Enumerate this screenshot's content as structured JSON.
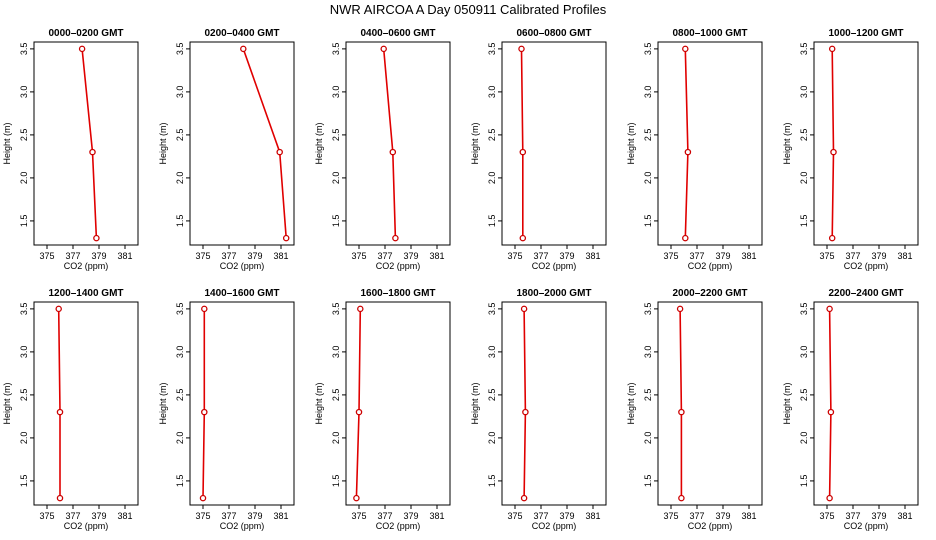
{
  "title": "NWR AIRCOA A  Day 050911  Calibrated Profiles",
  "chart_data": {
    "type": "line",
    "xlabel": "CO2 (ppm)",
    "ylabel": "Height (m)",
    "xlim": [
      374,
      382
    ],
    "ylim": [
      1.22,
      3.58
    ],
    "xticks": [
      375,
      377,
      379,
      381
    ],
    "yticks": [
      1.5,
      2.0,
      2.5,
      3.0,
      3.5
    ],
    "line_color": "#e00000",
    "marker_color": "#cc0000",
    "panels": [
      {
        "title": "0000–0200 GMT",
        "points": [
          {
            "x": 377.7,
            "y": 3.5
          },
          {
            "x": 378.5,
            "y": 2.3
          },
          {
            "x": 378.8,
            "y": 1.3
          }
        ]
      },
      {
        "title": "0200–0400 GMT",
        "points": [
          {
            "x": 378.1,
            "y": 3.5
          },
          {
            "x": 380.9,
            "y": 2.3
          },
          {
            "x": 381.4,
            "y": 1.3
          }
        ]
      },
      {
        "title": "0400–0600 GMT",
        "points": [
          {
            "x": 376.9,
            "y": 3.5
          },
          {
            "x": 377.6,
            "y": 2.3
          },
          {
            "x": 377.8,
            "y": 1.3
          }
        ]
      },
      {
        "title": "0600–0800 GMT",
        "points": [
          {
            "x": 375.5,
            "y": 3.5
          },
          {
            "x": 375.6,
            "y": 2.3
          },
          {
            "x": 375.6,
            "y": 1.3
          }
        ]
      },
      {
        "title": "0800–1000 GMT",
        "points": [
          {
            "x": 376.1,
            "y": 3.5
          },
          {
            "x": 376.3,
            "y": 2.3
          },
          {
            "x": 376.1,
            "y": 1.3
          }
        ]
      },
      {
        "title": "1000–1200 GMT",
        "points": [
          {
            "x": 375.4,
            "y": 3.5
          },
          {
            "x": 375.5,
            "y": 2.3
          },
          {
            "x": 375.4,
            "y": 1.3
          }
        ]
      },
      {
        "title": "1200–1400 GMT",
        "points": [
          {
            "x": 375.9,
            "y": 3.5
          },
          {
            "x": 376.0,
            "y": 2.3
          },
          {
            "x": 376.0,
            "y": 1.3
          }
        ]
      },
      {
        "title": "1400–1600 GMT",
        "points": [
          {
            "x": 375.1,
            "y": 3.5
          },
          {
            "x": 375.1,
            "y": 2.3
          },
          {
            "x": 375.0,
            "y": 1.3
          }
        ]
      },
      {
        "title": "1600–1800 GMT",
        "points": [
          {
            "x": 375.1,
            "y": 3.5
          },
          {
            "x": 375.0,
            "y": 2.3
          },
          {
            "x": 374.8,
            "y": 1.3
          }
        ]
      },
      {
        "title": "1800–2000 GMT",
        "points": [
          {
            "x": 375.7,
            "y": 3.5
          },
          {
            "x": 375.8,
            "y": 2.3
          },
          {
            "x": 375.7,
            "y": 1.3
          }
        ]
      },
      {
        "title": "2000–2200 GMT",
        "points": [
          {
            "x": 375.7,
            "y": 3.5
          },
          {
            "x": 375.8,
            "y": 2.3
          },
          {
            "x": 375.8,
            "y": 1.3
          }
        ]
      },
      {
        "title": "2200–2400 GMT",
        "points": [
          {
            "x": 375.2,
            "y": 3.5
          },
          {
            "x": 375.3,
            "y": 2.3
          },
          {
            "x": 375.2,
            "y": 1.3
          }
        ]
      }
    ]
  }
}
